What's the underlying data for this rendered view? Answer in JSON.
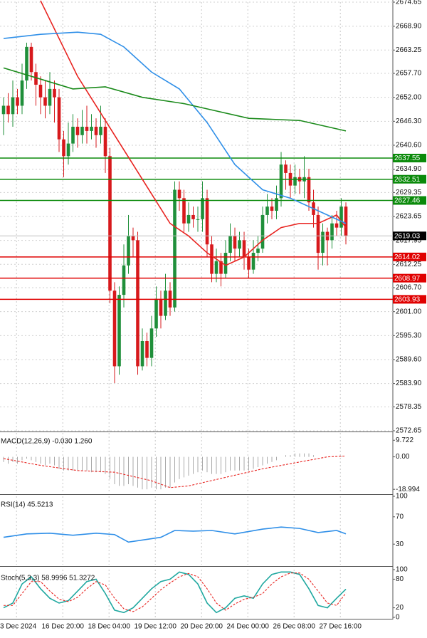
{
  "chart_data": [
    {
      "type": "candlestick",
      "xlim": [
        -0.77,
        84.15
      ],
      "xticks": [
        {
          "value": 2.8,
          "label": "3 Dec 2024"
        },
        {
          "value": 12.8,
          "label": "16 Dec 20:00"
        },
        {
          "value": 22.8,
          "label": "18 Dec 04:00"
        },
        {
          "value": 32.8,
          "label": "19 Dec 12:00"
        },
        {
          "value": 42.8,
          "label": "20 Dec 20:00"
        },
        {
          "value": 52.8,
          "label": "24 Dec 00:00"
        },
        {
          "value": 62.8,
          "label": "26 Dec 08:00"
        },
        {
          "value": 72.8,
          "label": "27 Dec 16:00"
        }
      ],
      "ylim": [
        2572.65,
        2674.65
      ],
      "yticks": [
        2572.65,
        2578.35,
        {
          "value": 2583.9,
          "label": "2583.90"
        },
        {
          "value": 2589.6,
          "label": "2589.60"
        },
        {
          "value": 2595.3,
          "label": "2595.30"
        },
        {
          "value": 2601,
          "label": "2601.00"
        },
        {
          "value": 2606.7,
          "label": "2606.70"
        },
        2612.25,
        2617.95,
        2623.65,
        2629.35,
        {
          "value": 2634.9,
          "label": "2634.90"
        },
        {
          "value": 2640.6,
          "label": "2640.60"
        },
        {
          "value": 2646.3,
          "label": "2646.30"
        },
        {
          "value": 2652,
          "label": "2652.00"
        },
        {
          "value": 2657.7,
          "label": "2657.70"
        },
        2663.25,
        {
          "value": 2668.9,
          "label": "2668.90"
        },
        2674.65
      ],
      "grid": true,
      "up_color": "#1f8f3a",
      "down_color": "#d7191c",
      "open": [
        2648,
        2650,
        2648,
        2652,
        2650,
        2656,
        2664,
        2658,
        2655,
        2652,
        2650,
        2654,
        2652,
        2642,
        2638,
        2641,
        2645,
        2643,
        2645,
        2644,
        2645,
        2643,
        2645,
        2638,
        2606,
        2588,
        2605,
        2612,
        2619,
        2618,
        2588,
        2594,
        2590,
        2597,
        2604,
        2600,
        2606,
        2602,
        2630,
        2628,
        2622,
        2624,
        2623,
        2623,
        2628,
        2617,
        2610,
        2613,
        2610,
        2615,
        2619,
        2616,
        2618,
        2614,
        2611,
        2615,
        2616,
        2624,
        2626,
        2625,
        2628,
        2636,
        2634,
        2631,
        2633,
        2632,
        2633,
        2627,
        2624,
        2615,
        2620,
        2618,
        2622,
        2621,
        2626
      ],
      "high": [
        2652,
        2653,
        2656,
        2654,
        2660,
        2665,
        2665,
        2660,
        2657,
        2656,
        2658,
        2656,
        2654,
        2644,
        2646,
        2648,
        2647,
        2649,
        2650,
        2648,
        2647,
        2650,
        2647,
        2640,
        2608,
        2607,
        2617,
        2624,
        2621,
        2620,
        2597,
        2596,
        2600,
        2607,
        2606,
        2610,
        2608,
        2632,
        2632,
        2630,
        2627,
        2626,
        2626,
        2632,
        2630,
        2619,
        2616,
        2615,
        2618,
        2622,
        2621,
        2620,
        2620,
        2616,
        2618,
        2619,
        2626,
        2629,
        2628,
        2631,
        2639,
        2637,
        2636,
        2636,
        2635,
        2638,
        2635,
        2630,
        2626,
        2622,
        2621,
        2624,
        2625,
        2628,
        2627
      ],
      "low": [
        2643,
        2646,
        2645,
        2648,
        2648,
        2654,
        2656,
        2650,
        2648,
        2647,
        2648,
        2646,
        2639,
        2633,
        2636,
        2639,
        2640,
        2641,
        2641,
        2642,
        2640,
        2641,
        2634,
        2603,
        2584,
        2586,
        2602,
        2610,
        2614,
        2586,
        2587,
        2588,
        2588,
        2595,
        2597,
        2599,
        2600,
        2601,
        2625,
        2620,
        2620,
        2621,
        2620,
        2620,
        2614,
        2608,
        2608,
        2607,
        2609,
        2613,
        2613,
        2614,
        2611,
        2609,
        2610,
        2613,
        2615,
        2622,
        2623,
        2623,
        2626,
        2630,
        2628,
        2629,
        2629,
        2628,
        2625,
        2621,
        2611,
        2612,
        2612,
        2616,
        2619,
        2619,
        2617
      ],
      "close": [
        2650,
        2648,
        2652,
        2650,
        2656,
        2664,
        2658,
        2655,
        2652,
        2650,
        2654,
        2652,
        2642,
        2638,
        2641,
        2645,
        2643,
        2645,
        2644,
        2645,
        2643,
        2645,
        2638,
        2606,
        2588,
        2605,
        2612,
        2619,
        2618,
        2588,
        2594,
        2590,
        2597,
        2604,
        2600,
        2606,
        2602,
        2630,
        2628,
        2622,
        2624,
        2623,
        2623,
        2628,
        2617,
        2610,
        2613,
        2610,
        2615,
        2619,
        2616,
        2618,
        2614,
        2611,
        2615,
        2616,
        2624,
        2626,
        2625,
        2628,
        2636,
        2634,
        2631,
        2633,
        2632,
        2633,
        2627,
        2624,
        2615,
        2620,
        2618,
        2622,
        2621,
        2626,
        2619
      ],
      "series": [
        {
          "color": "#e8231f",
          "x": [
            8,
            12,
            16,
            20,
            24,
            28,
            32,
            36,
            40,
            44,
            48,
            52,
            56,
            60,
            64,
            68,
            72,
            74
          ],
          "values": [
            2675,
            2666,
            2657,
            2650,
            2643,
            2636,
            2629,
            2622,
            2619,
            2615,
            2612,
            2614,
            2618,
            2621,
            2622,
            2622,
            2624,
            2621
          ]
        },
        {
          "color": "#2f8fe8",
          "x": [
            0,
            8,
            16,
            21,
            26,
            32,
            38,
            44,
            50,
            56,
            62,
            68,
            74
          ],
          "values": [
            2666,
            2667,
            2667.5,
            2667,
            2664,
            2658,
            2654,
            2646,
            2636,
            2630,
            2628,
            2625,
            2622
          ]
        },
        {
          "color": "#1a8a1a",
          "x": [
            0,
            9,
            15,
            22,
            30,
            39,
            45,
            53,
            64,
            74
          ],
          "values": [
            2659,
            2656,
            2654,
            2654.5,
            2652,
            2650.5,
            2649,
            2647,
            2646.5,
            2644
          ]
        }
      ],
      "levels": [
        {
          "value": 2637.55,
          "color": "#0a8a0a"
        },
        {
          "value": 2632.51,
          "color": "#0a8a0a"
        },
        {
          "value": 2627.46,
          "color": "#0a8a0a"
        },
        {
          "value": 2614.02,
          "color": "#e00000"
        },
        {
          "value": 2608.97,
          "color": "#e00000"
        },
        {
          "value": 2603.93,
          "color": "#e00000"
        }
      ],
      "last_price": 2619.03
    },
    {
      "type": "macd",
      "label": "MACD(12,26,9) -0.030 1.260",
      "ylim": [
        -21,
        14
      ],
      "yticks": [
        -18.994,
        {
          "value": 0,
          "label": "0.00"
        },
        9.722
      ],
      "series": [
        {
          "style": "histogram",
          "color": "#a8a8a8",
          "values": [
            -3,
            -4,
            -3,
            -4,
            -2,
            -1,
            -2,
            -3,
            -4,
            -5,
            -4,
            -5,
            -7,
            -8,
            -8,
            -8,
            -8,
            -8,
            -8,
            -9,
            -9,
            -9,
            -10,
            -13,
            -16,
            -17,
            -17,
            -16,
            -17,
            -18,
            -19,
            -19,
            -18,
            -19,
            -19,
            -18,
            -18,
            -15,
            -13,
            -12,
            -11,
            -10,
            -9,
            -8,
            -9,
            -10,
            -10,
            -10,
            -9,
            -8,
            -8,
            -8,
            -8,
            -8,
            -7,
            -6,
            -5,
            -4,
            -3,
            -2,
            0,
            1,
            1,
            2,
            2,
            2,
            2,
            1,
            0,
            0,
            0,
            0,
            0.5,
            0.5,
            0
          ]
        },
        {
          "style": "dashed",
          "color": "#e8231f",
          "x": [
            0,
            8,
            16,
            24,
            32,
            36,
            40,
            48,
            56,
            64,
            70,
            74
          ],
          "values": [
            -1,
            -5,
            -8,
            -9,
            -14,
            -18,
            -17,
            -12,
            -7,
            -3,
            0,
            0.5
          ]
        }
      ]
    },
    {
      "type": "line",
      "label": "RSI(14) 45.5213",
      "ylim": [
        0,
        100
      ],
      "yticks": [
        30,
        70,
        100
      ],
      "series": [
        {
          "style": "solid",
          "color": "#2f8fe8",
          "x": [
            0,
            5,
            10,
            15,
            20,
            24,
            27,
            30,
            34,
            37,
            41,
            45,
            50,
            56,
            60,
            64,
            68,
            72,
            74
          ],
          "values": [
            40,
            45,
            46,
            43,
            46,
            44,
            33,
            36,
            40,
            50,
            49,
            50,
            45,
            52,
            55,
            53,
            47,
            50,
            45
          ]
        }
      ]
    },
    {
      "type": "line",
      "label": "Stoch(5,3,3) 58.9996 51.3272",
      "ylim": [
        0,
        100
      ],
      "yticks": [
        0,
        20,
        80,
        100
      ],
      "series": [
        {
          "style": "solid",
          "color": "#20a8a0",
          "x": [
            0,
            2,
            4,
            6,
            8,
            10,
            12,
            14,
            16,
            18,
            20,
            22,
            24,
            26,
            28,
            30,
            32,
            34,
            36,
            38,
            40,
            42,
            44,
            46,
            48,
            50,
            52,
            54,
            56,
            58,
            60,
            62,
            64,
            66,
            68,
            70,
            72,
            74
          ],
          "values": [
            20,
            30,
            70,
            85,
            60,
            40,
            30,
            35,
            55,
            75,
            80,
            50,
            15,
            10,
            20,
            40,
            60,
            75,
            80,
            95,
            90,
            70,
            30,
            10,
            20,
            40,
            45,
            40,
            70,
            90,
            95,
            95,
            90,
            60,
            25,
            20,
            40,
            59
          ]
        },
        {
          "style": "dashed",
          "color": "#e8231f",
          "x": [
            0,
            2,
            4,
            6,
            8,
            10,
            12,
            14,
            16,
            18,
            20,
            22,
            24,
            26,
            28,
            30,
            32,
            34,
            36,
            38,
            40,
            42,
            44,
            46,
            48,
            50,
            52,
            54,
            56,
            58,
            60,
            62,
            64,
            66,
            68,
            70,
            72,
            74
          ],
          "values": [
            25,
            25,
            50,
            75,
            75,
            55,
            38,
            33,
            42,
            60,
            75,
            68,
            40,
            18,
            12,
            22,
            40,
            58,
            72,
            85,
            92,
            85,
            60,
            30,
            15,
            28,
            38,
            42,
            50,
            70,
            85,
            93,
            93,
            80,
            55,
            30,
            25,
            51
          ]
        }
      ]
    }
  ]
}
